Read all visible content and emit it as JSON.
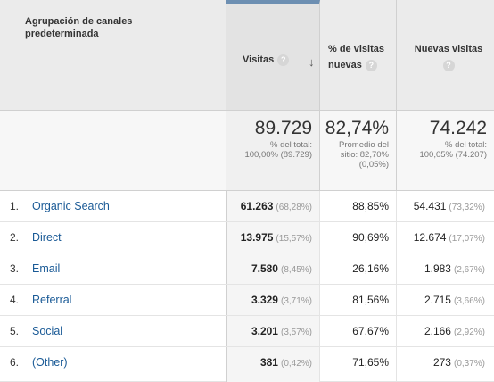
{
  "header": {
    "dimension_label": "Agrupación de canales predeterminada",
    "visits_label": "Visitas",
    "new_visits_pct_label": "% de visitas nuevas",
    "new_visits_label": "Nuevas visitas",
    "help_glyph": "?",
    "sort_glyph": "↓"
  },
  "totals": {
    "visits": "89.729",
    "visits_sub_1": "% del total:",
    "visits_sub_2": "100,00% (89.729)",
    "pct_new": "82,74%",
    "pct_new_sub_1": "Promedio del",
    "pct_new_sub_2": "sitio: 82,70%",
    "pct_new_sub_3": "(0,05%)",
    "new_visits": "74.242",
    "new_visits_sub_1": "% del total:",
    "new_visits_sub_2": "100,05% (74.207)"
  },
  "rows": [
    {
      "num": "1.",
      "name": "Organic Search",
      "visits": "61.263",
      "visits_pct": "(68,28%)",
      "pct_new": "88,85%",
      "new_visits": "54.431",
      "new_visits_pct": "(73,32%)"
    },
    {
      "num": "2.",
      "name": "Direct",
      "visits": "13.975",
      "visits_pct": "(15,57%)",
      "pct_new": "90,69%",
      "new_visits": "12.674",
      "new_visits_pct": "(17,07%)"
    },
    {
      "num": "3.",
      "name": "Email",
      "visits": "7.580",
      "visits_pct": "(8,45%)",
      "pct_new": "26,16%",
      "new_visits": "1.983",
      "new_visits_pct": "(2,67%)"
    },
    {
      "num": "4.",
      "name": "Referral",
      "visits": "3.329",
      "visits_pct": "(3,71%)",
      "pct_new": "81,56%",
      "new_visits": "2.715",
      "new_visits_pct": "(3,66%)"
    },
    {
      "num": "5.",
      "name": "Social",
      "visits": "3.201",
      "visits_pct": "(3,57%)",
      "pct_new": "67,67%",
      "new_visits": "2.166",
      "new_visits_pct": "(2,92%)"
    },
    {
      "num": "6.",
      "name": "(Other)",
      "visits": "381",
      "visits_pct": "(0,42%)",
      "pct_new": "71,65%",
      "new_visits": "273",
      "new_visits_pct": "(0,37%)"
    }
  ]
}
